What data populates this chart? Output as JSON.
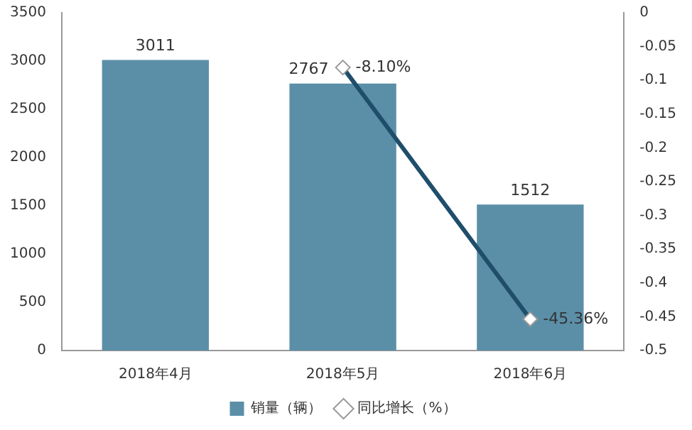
{
  "chart_data": {
    "type": "bar",
    "categories": [
      "2018年4月",
      "2018年5月",
      "2018年6月"
    ],
    "series": [
      {
        "name": "销量（辆）",
        "color": "#5b8fa8",
        "values": [
          3011,
          2767,
          1512
        ],
        "value_labels": [
          "3011",
          "2767",
          "1512"
        ]
      },
      {
        "name": "同比增长（%）",
        "type": "line",
        "axis": "y2",
        "color": "#1f4e6b",
        "values": [
          null,
          -0.081,
          -0.4536
        ],
        "value_labels": [
          null,
          "-8.10%",
          "-45.36%"
        ]
      }
    ],
    "ylim": [
      0,
      3500
    ],
    "yticks": [
      0,
      500,
      1000,
      1500,
      2000,
      2500,
      3000,
      3500
    ],
    "y2lim": [
      -0.5,
      0
    ],
    "y2ticks": [
      0,
      -0.05,
      -0.1,
      -0.15,
      -0.2,
      -0.25,
      -0.3,
      -0.35,
      -0.4,
      -0.45,
      -0.5
    ],
    "grid": false,
    "legend": "bottom",
    "marker": "diamond",
    "line_style": "solid"
  }
}
